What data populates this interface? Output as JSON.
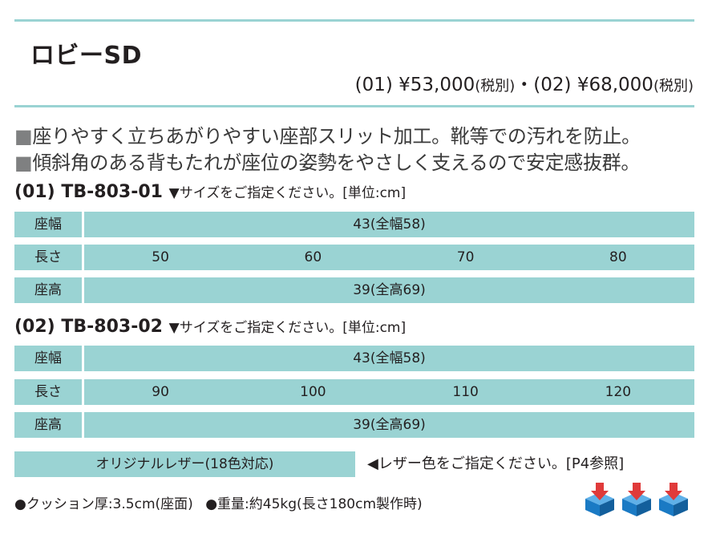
{
  "product": {
    "name": "ロビーSD",
    "price": {
      "v1_code": "(01)",
      "v1_price": "¥53,000",
      "v1_tax": "(税別)",
      "separator": "・",
      "v2_code": "(02)",
      "v2_price": "¥68,000",
      "v2_tax": "(税別)"
    }
  },
  "features": [
    {
      "bullet": "■",
      "text": "座りやすく立ちあがりやすい座部スリット加工。靴等での汚れを防止。"
    },
    {
      "bullet": "■",
      "text": "傾斜角のある背もたれが座位の姿勢をやさしく支えるので安定感抜群。"
    }
  ],
  "models": [
    {
      "code": "(01) TB-803-01",
      "note": "▼サイズをご指定ください。[単位:cm]",
      "rows": [
        {
          "label": "座幅",
          "value": "43(全幅58)"
        },
        {
          "label": "長さ",
          "values": [
            "50",
            "60",
            "70",
            "80"
          ]
        },
        {
          "label": "座高",
          "value": "39(全高69)"
        }
      ]
    },
    {
      "code": "(02) TB-803-02",
      "note": "▼サイズをご指定ください。[単位:cm]",
      "rows": [
        {
          "label": "座幅",
          "value": "43(全幅58)"
        },
        {
          "label": "長さ",
          "values": [
            "90",
            "100",
            "110",
            "120"
          ]
        },
        {
          "label": "座高",
          "value": "39(全高69)"
        }
      ]
    }
  ],
  "leather": {
    "label": "オリジナルレザー(18色対応)",
    "note": "◀レザー色をご指定ください。[P4参照]"
  },
  "specs": {
    "cushion": "●クッション厚:3.5cm(座面)",
    "weight": "●重量:約45kg(長さ180cm製作時)"
  },
  "colors": {
    "accent": "#9ad3d3",
    "icon_blue": "#1a7ac4",
    "icon_red": "#e03a3a"
  },
  "icons": [
    "cushion-box-icon",
    "cushion-box-icon",
    "cushion-box-icon"
  ]
}
